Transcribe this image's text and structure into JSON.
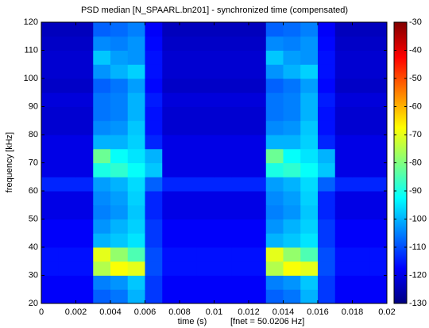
{
  "chart_data": {
    "type": "heatmap",
    "title": "PSD median [N_SPAARL.bn201] - synchronized time (compensated)",
    "x_label": "time (s)",
    "x_note": "[fnet = 50.0206 Hz]",
    "y_label": "frequency [kHz]",
    "xlim": [
      0,
      0.02
    ],
    "ylim": [
      20,
      120
    ],
    "xticks": [
      0,
      0.002,
      0.004,
      0.006,
      0.008,
      0.01,
      0.012,
      0.014,
      0.016,
      0.018,
      0.02
    ],
    "yticks": [
      20,
      30,
      40,
      50,
      60,
      70,
      80,
      90,
      100,
      110,
      120
    ],
    "colormap": "jet",
    "clim": [
      -130,
      -30
    ],
    "cticks": [
      -30,
      -40,
      -50,
      -60,
      -70,
      -80,
      -90,
      -100,
      -110,
      -120,
      -130
    ],
    "xbins": [
      0,
      0.001,
      0.002,
      0.003,
      0.004,
      0.005,
      0.006,
      0.007,
      0.008,
      0.009,
      0.01,
      0.011,
      0.012,
      0.013,
      0.014,
      0.015,
      0.016,
      0.017,
      0.018,
      0.019,
      0.02
    ],
    "ybins": [
      20,
      25,
      30,
      35,
      40,
      45,
      50,
      55,
      60,
      65,
      70,
      75,
      80,
      85,
      90,
      95,
      100,
      105,
      110,
      115,
      120
    ],
    "z": [
      [
        -118,
        -118,
        -118,
        -108,
        -106,
        -100,
        -112,
        -118,
        -118,
        -118,
        -118,
        -118,
        -118,
        -108,
        -106,
        -100,
        -112,
        -118,
        -118,
        -118
      ],
      [
        -118,
        -118,
        -118,
        -105,
        -103,
        -98,
        -112,
        -118,
        -118,
        -118,
        -118,
        -118,
        -118,
        -105,
        -103,
        -98,
        -112,
        -118,
        -118,
        -118
      ],
      [
        -116,
        -116,
        -116,
        -75,
        -68,
        -70,
        -110,
        -116,
        -116,
        -116,
        -116,
        -116,
        -116,
        -75,
        -68,
        -70,
        -110,
        -116,
        -116,
        -116
      ],
      [
        -116,
        -116,
        -116,
        -70,
        -78,
        -85,
        -110,
        -116,
        -116,
        -116,
        -116,
        -116,
        -116,
        -70,
        -78,
        -85,
        -110,
        -116,
        -116,
        -116
      ],
      [
        -118,
        -118,
        -118,
        -100,
        -98,
        -95,
        -112,
        -118,
        -118,
        -118,
        -118,
        -118,
        -118,
        -100,
        -98,
        -95,
        -112,
        -118,
        -118,
        -118
      ],
      [
        -118,
        -118,
        -118,
        -103,
        -100,
        -97,
        -112,
        -118,
        -118,
        -118,
        -118,
        -118,
        -118,
        -103,
        -100,
        -97,
        -112,
        -118,
        -118,
        -118
      ],
      [
        -120,
        -120,
        -120,
        -105,
        -103,
        -98,
        -114,
        -120,
        -120,
        -120,
        -120,
        -120,
        -120,
        -105,
        -103,
        -98,
        -114,
        -120,
        -120,
        -120
      ],
      [
        -120,
        -120,
        -120,
        -104,
        -102,
        -97,
        -114,
        -120,
        -120,
        -120,
        -120,
        -120,
        -120,
        -104,
        -102,
        -97,
        -114,
        -120,
        -120,
        -120
      ],
      [
        -114,
        -114,
        -114,
        -102,
        -100,
        -96,
        -108,
        -114,
        -114,
        -114,
        -114,
        -114,
        -114,
        -102,
        -100,
        -96,
        -108,
        -114,
        -114,
        -114
      ],
      [
        -120,
        -120,
        -120,
        -90,
        -88,
        -92,
        -98,
        -120,
        -120,
        -120,
        -120,
        -120,
        -120,
        -90,
        -88,
        -92,
        -98,
        -120,
        -120,
        -120
      ],
      [
        -120,
        -120,
        -120,
        -82,
        -92,
        -95,
        -100,
        -120,
        -120,
        -120,
        -120,
        -120,
        -120,
        -82,
        -92,
        -95,
        -100,
        -120,
        -120,
        -120
      ],
      [
        -120,
        -120,
        -120,
        -100,
        -100,
        -97,
        -114,
        -120,
        -120,
        -120,
        -120,
        -120,
        -120,
        -100,
        -100,
        -97,
        -114,
        -120,
        -120,
        -120
      ],
      [
        -122,
        -122,
        -122,
        -104,
        -103,
        -98,
        -116,
        -122,
        -122,
        -122,
        -122,
        -122,
        -122,
        -104,
        -103,
        -98,
        -116,
        -122,
        -122,
        -122
      ],
      [
        -122,
        -122,
        -122,
        -106,
        -105,
        -100,
        -116,
        -122,
        -122,
        -122,
        -122,
        -122,
        -122,
        -106,
        -105,
        -100,
        -116,
        -122,
        -122,
        -122
      ],
      [
        -121,
        -121,
        -121,
        -106,
        -105,
        -100,
        -115,
        -121,
        -121,
        -121,
        -121,
        -121,
        -121,
        -106,
        -105,
        -100,
        -115,
        -121,
        -121,
        -121
      ],
      [
        -123,
        -123,
        -123,
        -108,
        -106,
        -102,
        -117,
        -123,
        -123,
        -123,
        -123,
        -123,
        -123,
        -108,
        -106,
        -102,
        -117,
        -123,
        -123,
        -123
      ],
      [
        -122,
        -122,
        -122,
        -103,
        -100,
        -97,
        -116,
        -122,
        -122,
        -122,
        -122,
        -122,
        -122,
        -103,
        -100,
        -97,
        -116,
        -122,
        -122,
        -122
      ],
      [
        -122,
        -122,
        -122,
        -98,
        -102,
        -103,
        -116,
        -122,
        -122,
        -122,
        -122,
        -122,
        -122,
        -98,
        -102,
        -103,
        -116,
        -122,
        -122,
        -122
      ],
      [
        -123,
        -123,
        -123,
        -104,
        -105,
        -103,
        -117,
        -123,
        -123,
        -123,
        -123,
        -123,
        -123,
        -104,
        -105,
        -103,
        -117,
        -123,
        -123,
        -123
      ],
      [
        -124,
        -124,
        -124,
        -108,
        -107,
        -105,
        -118,
        -124,
        -124,
        -124,
        -124,
        -124,
        -124,
        -108,
        -107,
        -105,
        -118,
        -124,
        -124,
        -124
      ]
    ]
  }
}
